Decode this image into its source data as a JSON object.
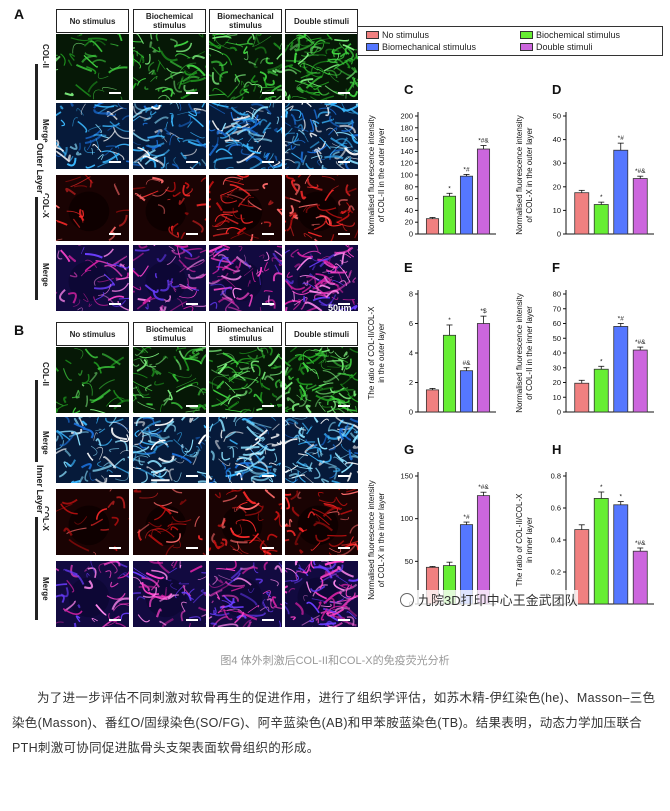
{
  "figure": {
    "panel_a": "A",
    "panel_b": "B",
    "column_headers": [
      "No stimulus",
      "Biochemical stimulus",
      "Biomechanical stimulus",
      "Double stimuli"
    ],
    "outer_rows": [
      "COL-II",
      "Merge",
      "COL-X",
      "Merge"
    ],
    "inner_rows": [
      "COL-II",
      "Merge",
      "COL-X",
      "Merge"
    ],
    "outer_layer_label": "Outer Layer",
    "inner_layer_label": "Inner Layer",
    "scale_label": "50μm"
  },
  "legend": {
    "items": [
      {
        "label": "No stimulus",
        "color": "#f08080"
      },
      {
        "label": "Biochemical stimulus",
        "color": "#66ee33"
      },
      {
        "label": "Biomechanical stimulus",
        "color": "#5577ff"
      },
      {
        "label": "Double stimuli",
        "color": "#cc66dd"
      }
    ]
  },
  "chart_data": [
    {
      "panel": "C",
      "type": "bar",
      "categories": [
        "No stimulus",
        "Biochemical stimulus",
        "Biomechanical stimulus",
        "Double stimuli"
      ],
      "values": [
        26,
        64,
        98,
        144
      ],
      "errors": [
        2,
        5,
        3,
        6
      ],
      "annotations": [
        "",
        "*",
        "*#",
        "*#&"
      ],
      "ylabel": [
        "Normalised fluorescence intensity",
        "of COL-II in the outer layer"
      ],
      "ylim": [
        0,
        200
      ],
      "ticks": [
        0,
        20,
        40,
        60,
        80,
        100,
        120,
        140,
        160,
        180,
        200
      ]
    },
    {
      "panel": "D",
      "type": "bar",
      "categories": [
        "No stimulus",
        "Biochemical stimulus",
        "Biomechanical stimulus",
        "Double stimuli"
      ],
      "values": [
        17.5,
        12.5,
        35.5,
        23.5
      ],
      "errors": [
        1,
        1,
        3,
        1
      ],
      "annotations": [
        "",
        "*",
        "*#",
        "*#&"
      ],
      "ylabel": [
        "Normalised fluorescence intensity",
        "of COL-X in the outer layer"
      ],
      "ylim": [
        0,
        50
      ],
      "ticks": [
        0,
        10,
        20,
        30,
        40,
        50
      ]
    },
    {
      "panel": "E",
      "type": "bar",
      "categories": [
        "No stimulus",
        "Biochemical stimulus",
        "Biomechanical stimulus",
        "Double stimuli"
      ],
      "values": [
        1.5,
        5.2,
        2.8,
        6.0
      ],
      "errors": [
        0.1,
        0.7,
        0.2,
        0.5
      ],
      "annotations": [
        "",
        "*",
        "#&",
        "*$"
      ],
      "ylabel": [
        "The ratio of COL-II/COL-X",
        "in the outer layer"
      ],
      "ylim": [
        0,
        8
      ],
      "ticks": [
        0,
        2,
        4,
        6,
        8
      ]
    },
    {
      "panel": "F",
      "type": "bar",
      "categories": [
        "No stimulus",
        "Biochemical stimulus",
        "Biomechanical stimulus",
        "Double stimuli"
      ],
      "values": [
        19.5,
        29,
        58,
        42
      ],
      "errors": [
        2,
        2,
        2,
        2
      ],
      "annotations": [
        "",
        "*",
        "*#",
        "*#&"
      ],
      "ylabel": [
        "Normalised fluorescence intensity",
        "of COL-II in the inner layer"
      ],
      "ylim": [
        0,
        80
      ],
      "ticks": [
        0,
        10,
        20,
        30,
        40,
        50,
        60,
        70,
        80
      ]
    },
    {
      "panel": "G",
      "type": "bar",
      "categories": [
        "No stimulus",
        "Biochemical stimulus",
        "Biomechanical stimulus",
        "Double stimuli"
      ],
      "values": [
        43,
        45,
        93,
        127
      ],
      "errors": [
        1,
        4,
        3,
        4
      ],
      "annotations": [
        "",
        "",
        "*#",
        "*#&"
      ],
      "ylabel": [
        "Normalised fluorescence intensity",
        "of COL-X in the inner layer"
      ],
      "ylim": [
        0,
        150
      ],
      "ticks": [
        0,
        50,
        100,
        150
      ]
    },
    {
      "panel": "H",
      "type": "bar",
      "categories": [
        "No stimulus",
        "Biochemical stimulus",
        "Biomechanical stimulus",
        "Double stimuli"
      ],
      "values": [
        0.465,
        0.66,
        0.62,
        0.33
      ],
      "errors": [
        0.03,
        0.04,
        0.02,
        0.02
      ],
      "annotations": [
        "",
        "*",
        "*",
        "*#&"
      ],
      "ylabel": [
        "The ratio of COL-II/COL-X",
        "in inner layer"
      ],
      "ylim": [
        0,
        0.8
      ],
      "ticks": [
        0.0,
        0.2,
        0.4,
        0.6,
        0.8
      ]
    }
  ],
  "watermark": "九院3D打印中心王金武团队",
  "caption": "图4 体外刺激后COL-II和COL-X的免疫荧光分析",
  "paragraph": "为了进一步评估不同刺激对软骨再生的促进作用，进行了组织学评估，如苏木精-伊红染色(he)、Masson–三色染色(Masson)、番红O/固绿染色(SO/FG)、阿辛蓝染色(AB)和甲苯胺蓝染色(TB)。结果表明，动态力学加压联合PTH刺激可协同促进肱骨头支架表面软骨组织的形成。"
}
